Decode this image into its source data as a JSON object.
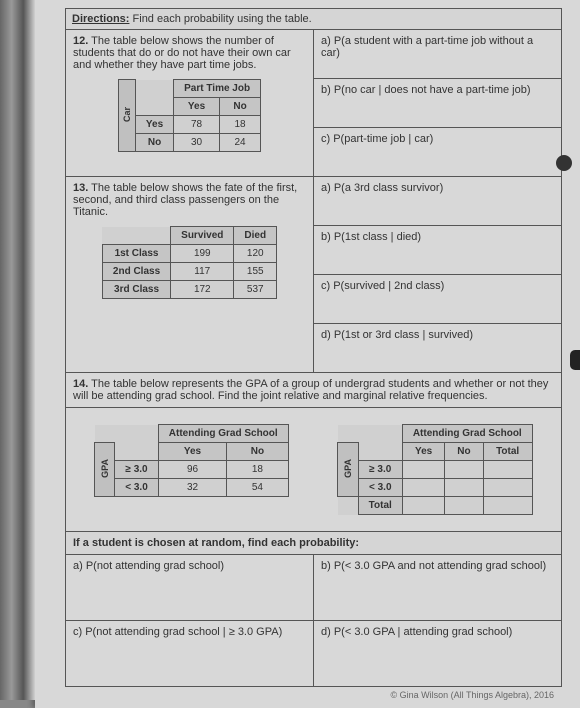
{
  "directions": {
    "label": "Directions:",
    "text": " Find each probability using the table."
  },
  "q12": {
    "num": "12.",
    "text": "The table below shows the number of students that do or do not have their own car and whether they have part time jobs.",
    "table": {
      "title": "Part Time Job",
      "side": "Car",
      "cols": [
        "Yes",
        "No"
      ],
      "rows": [
        {
          "hdr": "Yes",
          "vals": [
            "78",
            "18"
          ]
        },
        {
          "hdr": "No",
          "vals": [
            "30",
            "24"
          ]
        }
      ]
    },
    "parts": {
      "a": "a) P(a student with a part-time job without a car)",
      "b": "b) P(no car | does not have a part-time job)",
      "c": "c) P(part-time job | car)"
    }
  },
  "q13": {
    "num": "13.",
    "text": "The table below shows the fate of the first, second, and third class passengers on the Titanic.",
    "table": {
      "cols": [
        "Survived",
        "Died"
      ],
      "rows": [
        {
          "hdr": "1st Class",
          "vals": [
            "199",
            "120"
          ]
        },
        {
          "hdr": "2nd Class",
          "vals": [
            "117",
            "155"
          ]
        },
        {
          "hdr": "3rd Class",
          "vals": [
            "172",
            "537"
          ]
        }
      ]
    },
    "parts": {
      "a": "a) P(a 3rd class survivor)",
      "b": "b) P(1st class | died)",
      "c": "c) P(survived | 2nd class)",
      "d": "d) P(1st or 3rd class | survived)"
    }
  },
  "q14": {
    "num": "14.",
    "text": "The table below represents the GPA of a group of undergrad students and whether or not they will be attending grad school. Find the joint relative and marginal relative frequencies.",
    "table1": {
      "title": "Attending Grad School",
      "side": "GPA",
      "cols": [
        "Yes",
        "No"
      ],
      "rows": [
        {
          "hdr": "≥ 3.0",
          "vals": [
            "96",
            "18"
          ]
        },
        {
          "hdr": "< 3.0",
          "vals": [
            "32",
            "54"
          ]
        }
      ]
    },
    "table2": {
      "title": "Attending Grad School",
      "side": "GPA",
      "cols": [
        "Yes",
        "No",
        "Total"
      ],
      "rows": [
        {
          "hdr": "≥ 3.0"
        },
        {
          "hdr": "< 3.0"
        },
        {
          "hdr": "Total"
        }
      ]
    },
    "prob_header": "If a student is chosen at random, find each probability:",
    "parts": {
      "a": "a) P(not attending grad school)",
      "b": "b) P(< 3.0 GPA and not attending grad school)",
      "c": "c) P(not attending grad school | ≥ 3.0 GPA)",
      "d": "d) P(< 3.0 GPA | attending grad school)"
    }
  },
  "footer": "© Gina Wilson (All Things Algebra), 2016"
}
